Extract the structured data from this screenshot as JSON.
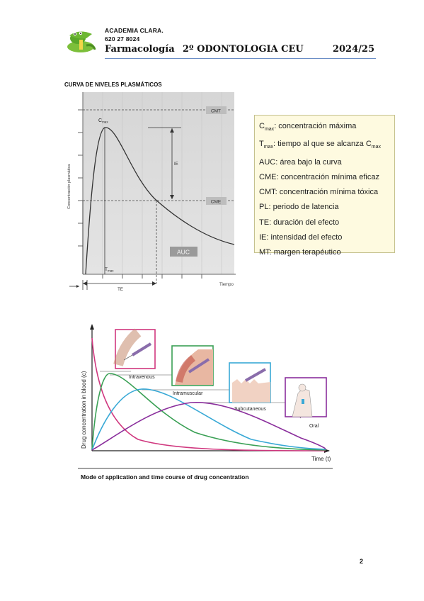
{
  "header": {
    "academy_name": "ACADEMIA CLARA.",
    "phone": "620 27 8024",
    "subject": "Farmacología",
    "course": "2º ODONTOLOGIA CEU",
    "year": "2024/25",
    "logo_icon": "crocodile-logo-icon"
  },
  "section_title": "CURVA DE NIVELES PLASMÁTICOS",
  "figure1": {
    "ylabel": "Concentración plasmática",
    "xlabel": "Tiempo",
    "cmax_label": "C",
    "cmax_sub": "max",
    "tmax_label": "T",
    "tmax_sub": "max",
    "cmt_label": "CMT",
    "cme_label": "CME",
    "ie_label": "IE",
    "te_label": "TE",
    "auc_label": "AUC",
    "colors": {
      "plot_bg": "#d9d9d9",
      "curve": "#333333",
      "label_box": "#bdbdbd"
    }
  },
  "legend": [
    {
      "term": "C",
      "sub": "max",
      "text": ": concentración máxima",
      "tail": "",
      "tail_sub": ""
    },
    {
      "term": "T",
      "sub": "max",
      "text": ": tiempo al que se alcanza ",
      "tail": "C",
      "tail_sub": "max"
    },
    {
      "term": "AUC",
      "sub": "",
      "text": ": área bajo la curva",
      "tail": "",
      "tail_sub": ""
    },
    {
      "term": "CME",
      "sub": "",
      "text": ": concentración mínima eficaz",
      "tail": "",
      "tail_sub": ""
    },
    {
      "term": "CMT",
      "sub": "",
      "text": ": concentración mínima tóxica",
      "tail": "",
      "tail_sub": ""
    },
    {
      "term": "PL",
      "sub": "",
      "text": ": periodo de latencia",
      "tail": "",
      "tail_sub": ""
    },
    {
      "term": "TE",
      "sub": "",
      "text": ": duración del efecto",
      "tail": "",
      "tail_sub": ""
    },
    {
      "term": "IE",
      "sub": "",
      "text": ": intensidad del efecto",
      "tail": "",
      "tail_sub": ""
    },
    {
      "term": "MT",
      "sub": "",
      "text": ": margen terapéutico",
      "tail": "",
      "tail_sub": ""
    }
  ],
  "figure2": {
    "ylabel": "Drug concentration in blood (c)",
    "xlabel": "Time (t)",
    "caption": "Mode of application and time course of drug concentration",
    "routes": [
      {
        "name": "Intravenous",
        "color": "#d0387f"
      },
      {
        "name": "Intramuscular",
        "color": "#3aa055"
      },
      {
        "name": "Subcutaneous",
        "color": "#39a9d6"
      },
      {
        "name": "Oral",
        "color": "#8a2e9c"
      }
    ]
  },
  "page_number": "2"
}
